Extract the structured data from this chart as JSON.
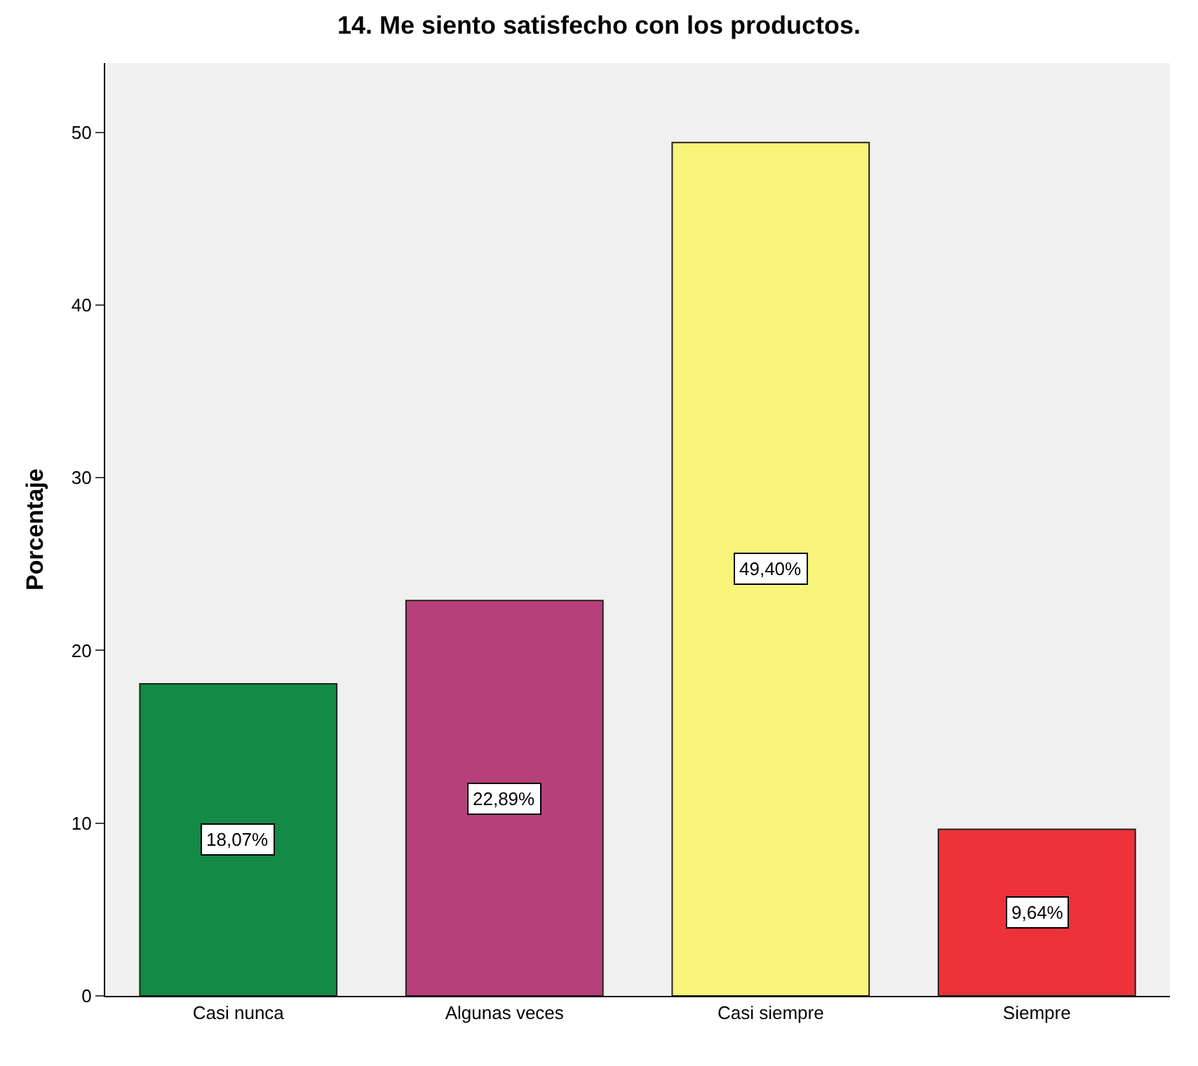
{
  "chart_data": {
    "type": "bar",
    "title": "14. Me siento satisfecho con los productos.",
    "ylabel": "Porcentaje",
    "categories": [
      "Casi nunca",
      "Algunas veces",
      "Casi siempre",
      "Siempre"
    ],
    "values": [
      18.07,
      22.89,
      49.4,
      9.64
    ],
    "colors": [
      "#138a46",
      "#b8407a",
      "#f8f57a",
      "#ee3239"
    ],
    "value_labels": [
      "18,07%",
      "22,89%",
      "49,40%",
      "9,64%"
    ],
    "ylim": [
      0,
      54
    ],
    "yticks": [
      0,
      10,
      20,
      30,
      40,
      50
    ],
    "grid": false,
    "legend": false
  }
}
